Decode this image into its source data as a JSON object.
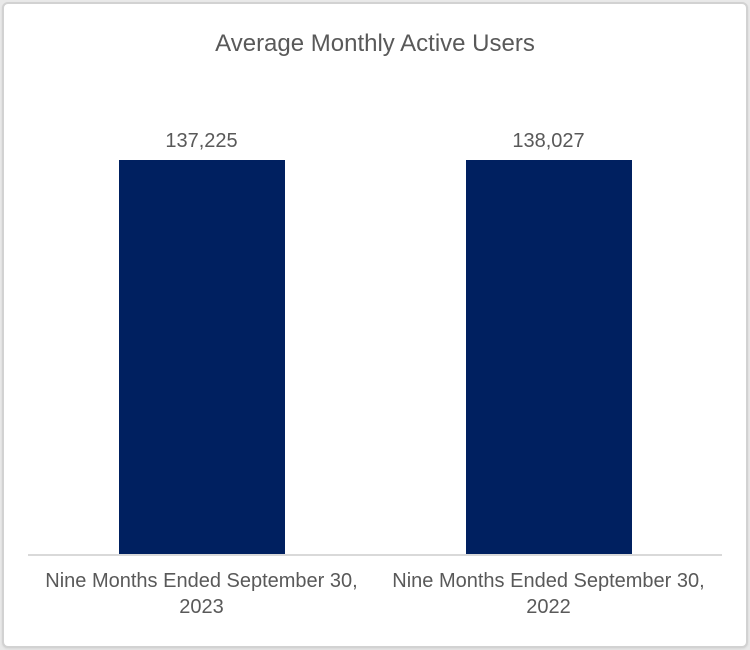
{
  "chart_data": {
    "type": "bar",
    "title": "Average Monthly Active Users",
    "categories": [
      "Nine Months Ended September 30, 2023",
      "Nine Months Ended September 30, 2022"
    ],
    "values": [
      137225,
      138027
    ],
    "value_labels": [
      "137,225",
      "138,027"
    ],
    "xlabel": "",
    "ylabel": "",
    "grid": "off",
    "legend": "none",
    "colors": {
      "bar_fill": "#002060",
      "text": "#595959",
      "axis_line": "#d9d9d9"
    }
  }
}
